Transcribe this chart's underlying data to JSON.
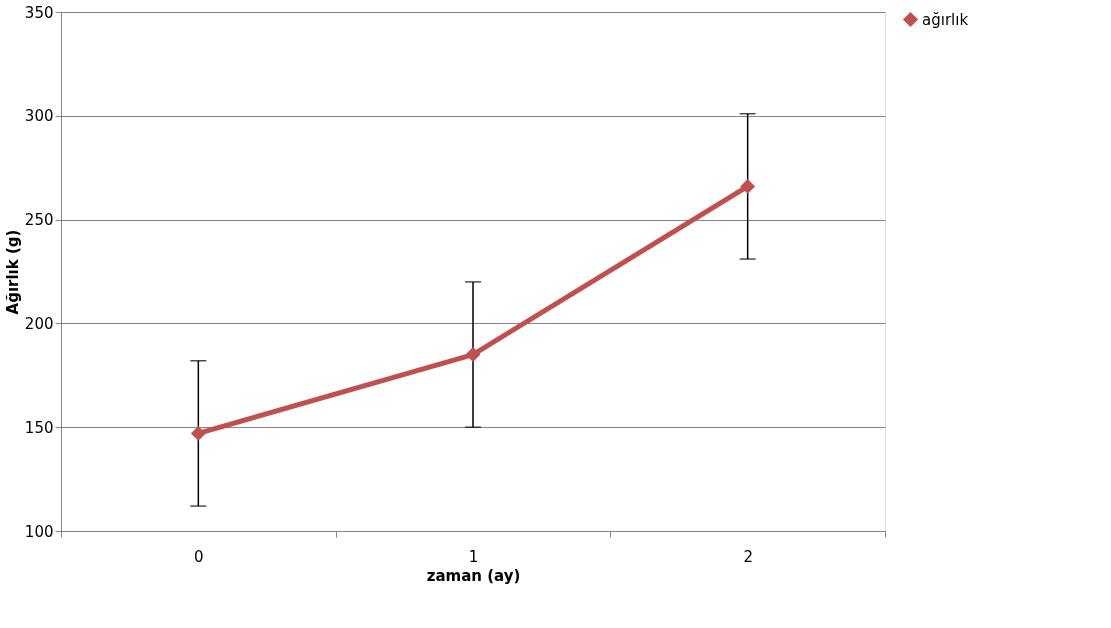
{
  "chart_data": {
    "type": "line",
    "xlabel": "zaman (ay)",
    "ylabel": "Ağırlık (g)",
    "categories": [
      "0",
      "1",
      "2"
    ],
    "series": [
      {
        "name": "ağırlık",
        "color": "#c0504d",
        "values": [
          147,
          185,
          266
        ],
        "errors": [
          35,
          35,
          35
        ]
      }
    ],
    "ylim": [
      100,
      350
    ],
    "yticks": [
      100,
      150,
      200,
      250,
      300,
      350
    ],
    "grid": "y",
    "legend": "right",
    "marker": "diamond",
    "line_style": "solid"
  }
}
